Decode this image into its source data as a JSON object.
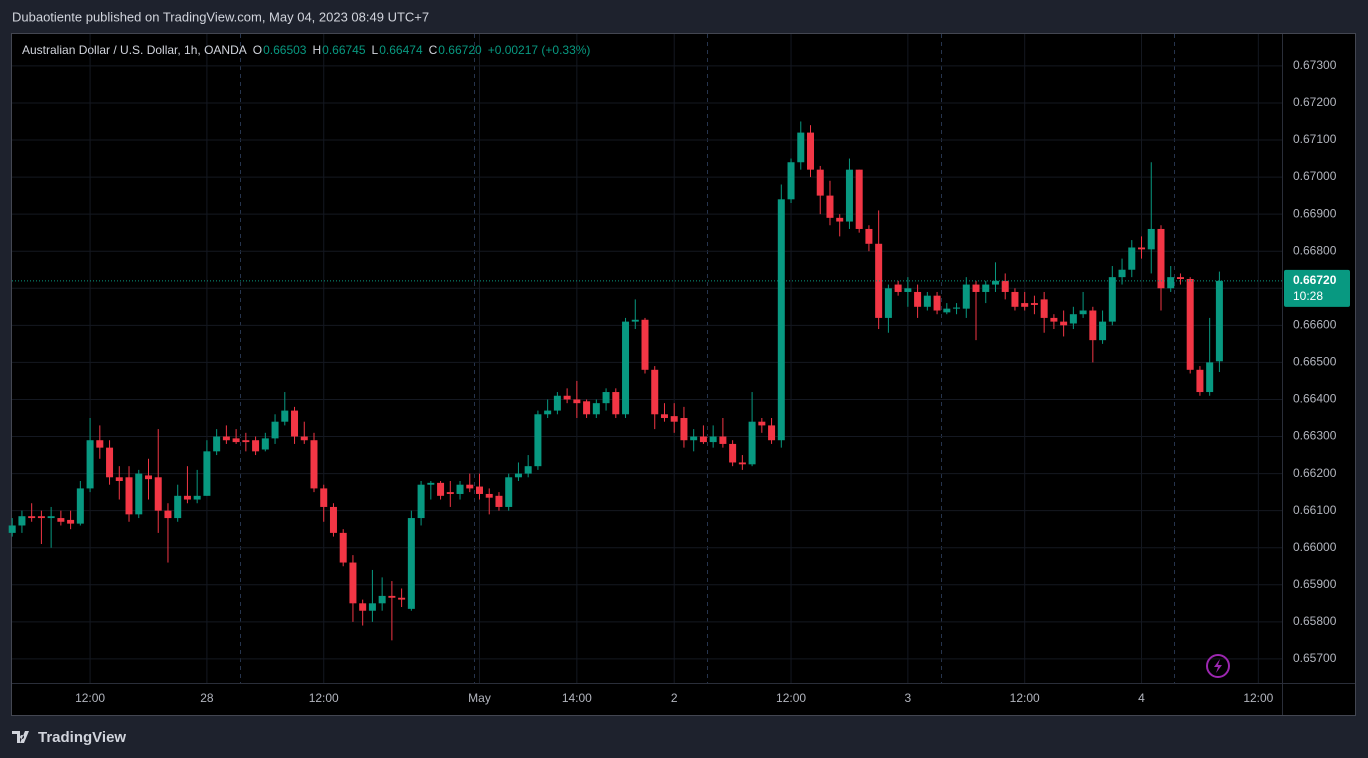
{
  "header": {
    "publisher": "Dubaotiente published on TradingView.com, May 04, 2023 08:49 UTC+7"
  },
  "footer": {
    "brand": "TradingView"
  },
  "chart_data": {
    "type": "candlestick",
    "title": "Australian Dollar / U.S. Dollar, 1h, OANDA",
    "legend": {
      "ohlc": [
        {
          "key": "O",
          "text": "0.66503"
        },
        {
          "key": "H",
          "text": "0.66745"
        },
        {
          "key": "L",
          "text": "0.66474"
        },
        {
          "key": "C",
          "text": "0.66720"
        }
      ],
      "change": "+0.00217 (+0.33%)"
    },
    "last_price": {
      "value": 0.6672,
      "label": "0.66720"
    },
    "countdown": "10:28",
    "up_color": "#089981",
    "down_color": "#f23645",
    "ylim": [
      0.65635,
      0.67386
    ],
    "yticks": [
      {
        "value": 0.673,
        "label": "0.67300"
      },
      {
        "value": 0.672,
        "label": "0.67200"
      },
      {
        "value": 0.671,
        "label": "0.67100"
      },
      {
        "value": 0.67,
        "label": "0.67000"
      },
      {
        "value": 0.669,
        "label": "0.66900"
      },
      {
        "value": 0.668,
        "label": "0.66800"
      },
      {
        "value": 0.667,
        "label": "0.66700"
      },
      {
        "value": 0.666,
        "label": "0.66600"
      },
      {
        "value": 0.665,
        "label": "0.66500"
      },
      {
        "value": 0.664,
        "label": "0.66400"
      },
      {
        "value": 0.663,
        "label": "0.66300"
      },
      {
        "value": 0.662,
        "label": "0.66200"
      },
      {
        "value": 0.661,
        "label": "0.66100"
      },
      {
        "value": 0.66,
        "label": "0.66000"
      },
      {
        "value": 0.659,
        "label": "0.65900"
      },
      {
        "value": 0.658,
        "label": "0.65800"
      },
      {
        "value": 0.657,
        "label": "0.65700"
      }
    ],
    "xlim": [
      -0.02,
      130.43
    ],
    "xticks": [
      {
        "value": 8,
        "label": "12:00"
      },
      {
        "value": 20,
        "label": "28"
      },
      {
        "value": 32,
        "label": "12:00"
      },
      {
        "value": 48,
        "label": "May"
      },
      {
        "value": 58,
        "label": "14:00"
      },
      {
        "value": 68,
        "label": "2"
      },
      {
        "value": 80,
        "label": "12:00"
      },
      {
        "value": 92,
        "label": "3"
      },
      {
        "value": 104,
        "label": "12:00"
      },
      {
        "value": 116,
        "label": "4"
      },
      {
        "value": 128,
        "label": "12:00"
      }
    ],
    "open": [
      0.6604,
      0.6606,
      0.66085,
      0.66085,
      0.6608,
      0.6608,
      0.66075,
      0.66065,
      0.6616,
      0.6629,
      0.6627,
      0.6619,
      0.6619,
      0.6609,
      0.66195,
      0.6619,
      0.661,
      0.6608,
      0.6614,
      0.6613,
      0.6614,
      0.6626,
      0.663,
      0.66295,
      0.6629,
      0.6629,
      0.66265,
      0.66295,
      0.6634,
      0.6637,
      0.663,
      0.6629,
      0.6616,
      0.6611,
      0.6604,
      0.6596,
      0.6585,
      0.6583,
      0.6585,
      0.6587,
      0.65865,
      0.65835,
      0.6608,
      0.6617,
      0.66175,
      0.6615,
      0.66145,
      0.6617,
      0.66165,
      0.66145,
      0.6614,
      0.6611,
      0.6619,
      0.662,
      0.6622,
      0.6636,
      0.6637,
      0.6641,
      0.664,
      0.66395,
      0.6636,
      0.6639,
      0.6642,
      0.6636,
      0.6661,
      0.66615,
      0.6648,
      0.6636,
      0.66355,
      0.6635,
      0.6629,
      0.663,
      0.66285,
      0.663,
      0.6628,
      0.6623,
      0.66225,
      0.6634,
      0.6633,
      0.6629,
      0.6694,
      0.6704,
      0.6712,
      0.6702,
      0.6695,
      0.6689,
      0.6688,
      0.6702,
      0.6686,
      0.6682,
      0.6662,
      0.6671,
      0.6669,
      0.6669,
      0.6665,
      0.6668,
      0.66635,
      0.66645,
      0.66645,
      0.6671,
      0.6669,
      0.6671,
      0.6672,
      0.6669,
      0.6666,
      0.6666,
      0.6667,
      0.6662,
      0.6661,
      0.66605,
      0.6663,
      0.6664,
      0.6656,
      0.6661,
      0.6673,
      0.6675,
      0.6681,
      0.66805,
      0.6686,
      0.667,
      0.6673,
      0.66725,
      0.6648,
      0.6642,
      0.66503
    ],
    "high": [
      0.6608,
      0.661,
      0.6612,
      0.661,
      0.6611,
      0.661,
      0.661,
      0.6618,
      0.6635,
      0.6633,
      0.6629,
      0.6622,
      0.6622,
      0.6621,
      0.6624,
      0.6632,
      0.6612,
      0.6617,
      0.6622,
      0.6621,
      0.6629,
      0.6632,
      0.6633,
      0.6632,
      0.6631,
      0.663,
      0.6631,
      0.6636,
      0.6642,
      0.6638,
      0.6634,
      0.6631,
      0.6617,
      0.6612,
      0.6605,
      0.6598,
      0.6586,
      0.6594,
      0.6592,
      0.6591,
      0.6589,
      0.661,
      0.6618,
      0.6618,
      0.6618,
      0.6618,
      0.6618,
      0.662,
      0.662,
      0.6616,
      0.6615,
      0.662,
      0.6623,
      0.6625,
      0.6637,
      0.664,
      0.6642,
      0.6643,
      0.6645,
      0.664,
      0.664,
      0.6643,
      0.6643,
      0.6662,
      0.6667,
      0.6662,
      0.6649,
      0.6639,
      0.6639,
      0.6638,
      0.6632,
      0.6633,
      0.6633,
      0.6635,
      0.6629,
      0.6625,
      0.6642,
      0.6635,
      0.6635,
      0.6698,
      0.6705,
      0.6715,
      0.6714,
      0.6703,
      0.6699,
      0.669,
      0.6705,
      0.6702,
      0.6687,
      0.6691,
      0.6671,
      0.6672,
      0.6673,
      0.6671,
      0.6669,
      0.6669,
      0.6666,
      0.6666,
      0.6673,
      0.6672,
      0.6672,
      0.6677,
      0.6674,
      0.667,
      0.6669,
      0.6668,
      0.6669,
      0.6663,
      0.6664,
      0.6665,
      0.6669,
      0.6665,
      0.6664,
      0.6676,
      0.6678,
      0.6683,
      0.6684,
      0.6704,
      0.6687,
      0.6676,
      0.6674,
      0.6673,
      0.6649,
      0.6662,
      0.66745
    ],
    "low": [
      0.6603,
      0.6604,
      0.6607,
      0.6601,
      0.66,
      0.6606,
      0.6605,
      0.6606,
      0.6615,
      0.6624,
      0.6617,
      0.6613,
      0.6607,
      0.6608,
      0.6613,
      0.6604,
      0.6596,
      0.6607,
      0.6612,
      0.6612,
      0.6614,
      0.6625,
      0.6628,
      0.6628,
      0.6626,
      0.6625,
      0.6626,
      0.6628,
      0.6633,
      0.6628,
      0.6628,
      0.6615,
      0.6607,
      0.6603,
      0.6595,
      0.658,
      0.6579,
      0.658,
      0.6583,
      0.6575,
      0.6584,
      0.6583,
      0.6606,
      0.6613,
      0.6613,
      0.6611,
      0.6613,
      0.6615,
      0.6613,
      0.6609,
      0.661,
      0.661,
      0.6618,
      0.6619,
      0.6621,
      0.6635,
      0.6636,
      0.6639,
      0.6635,
      0.6635,
      0.6635,
      0.6637,
      0.6635,
      0.6635,
      0.6659,
      0.6647,
      0.6632,
      0.6634,
      0.6631,
      0.6627,
      0.6626,
      0.6628,
      0.6627,
      0.6627,
      0.6622,
      0.6621,
      0.6622,
      0.6631,
      0.6628,
      0.6627,
      0.6693,
      0.6702,
      0.67,
      0.669,
      0.6687,
      0.6684,
      0.6686,
      0.6685,
      0.668,
      0.6659,
      0.6658,
      0.6668,
      0.6665,
      0.6662,
      0.6664,
      0.6663,
      0.6663,
      0.6663,
      0.6662,
      0.6656,
      0.6666,
      0.6669,
      0.6667,
      0.6664,
      0.6664,
      0.6663,
      0.6658,
      0.6659,
      0.6657,
      0.6659,
      0.6662,
      0.665,
      0.6655,
      0.666,
      0.6671,
      0.6673,
      0.6678,
      0.6674,
      0.6664,
      0.6669,
      0.6671,
      0.6647,
      0.6641,
      0.6641,
      0.66474
    ],
    "close": [
      0.6606,
      0.66085,
      0.6608,
      0.6608,
      0.66085,
      0.6607,
      0.66065,
      0.6616,
      0.6629,
      0.6627,
      0.6619,
      0.6618,
      0.6609,
      0.662,
      0.66185,
      0.661,
      0.6608,
      0.6614,
      0.6613,
      0.6614,
      0.6626,
      0.663,
      0.6629,
      0.66285,
      0.66285,
      0.6626,
      0.66295,
      0.6634,
      0.6637,
      0.663,
      0.6629,
      0.6616,
      0.6611,
      0.6604,
      0.6596,
      0.6585,
      0.6583,
      0.6585,
      0.6587,
      0.65865,
      0.6586,
      0.6608,
      0.6617,
      0.66175,
      0.6614,
      0.66145,
      0.6617,
      0.6616,
      0.66145,
      0.66135,
      0.6611,
      0.6619,
      0.662,
      0.6622,
      0.6636,
      0.6637,
      0.6641,
      0.664,
      0.6639,
      0.6636,
      0.6639,
      0.6642,
      0.6636,
      0.6661,
      0.66615,
      0.6648,
      0.6636,
      0.6635,
      0.6634,
      0.6629,
      0.663,
      0.66285,
      0.663,
      0.6628,
      0.6623,
      0.66225,
      0.6634,
      0.6633,
      0.6629,
      0.6694,
      0.6704,
      0.6712,
      0.6702,
      0.6695,
      0.6689,
      0.6688,
      0.6702,
      0.6686,
      0.6682,
      0.6662,
      0.667,
      0.6669,
      0.667,
      0.6665,
      0.6668,
      0.6664,
      0.66645,
      0.66648,
      0.6671,
      0.6669,
      0.6671,
      0.6672,
      0.6669,
      0.6665,
      0.6665,
      0.66655,
      0.6662,
      0.6661,
      0.666,
      0.6663,
      0.6664,
      0.6656,
      0.6661,
      0.6673,
      0.6675,
      0.6681,
      0.66805,
      0.6686,
      0.667,
      0.6673,
      0.66725,
      0.6648,
      0.6642,
      0.665,
      0.6672
    ]
  }
}
